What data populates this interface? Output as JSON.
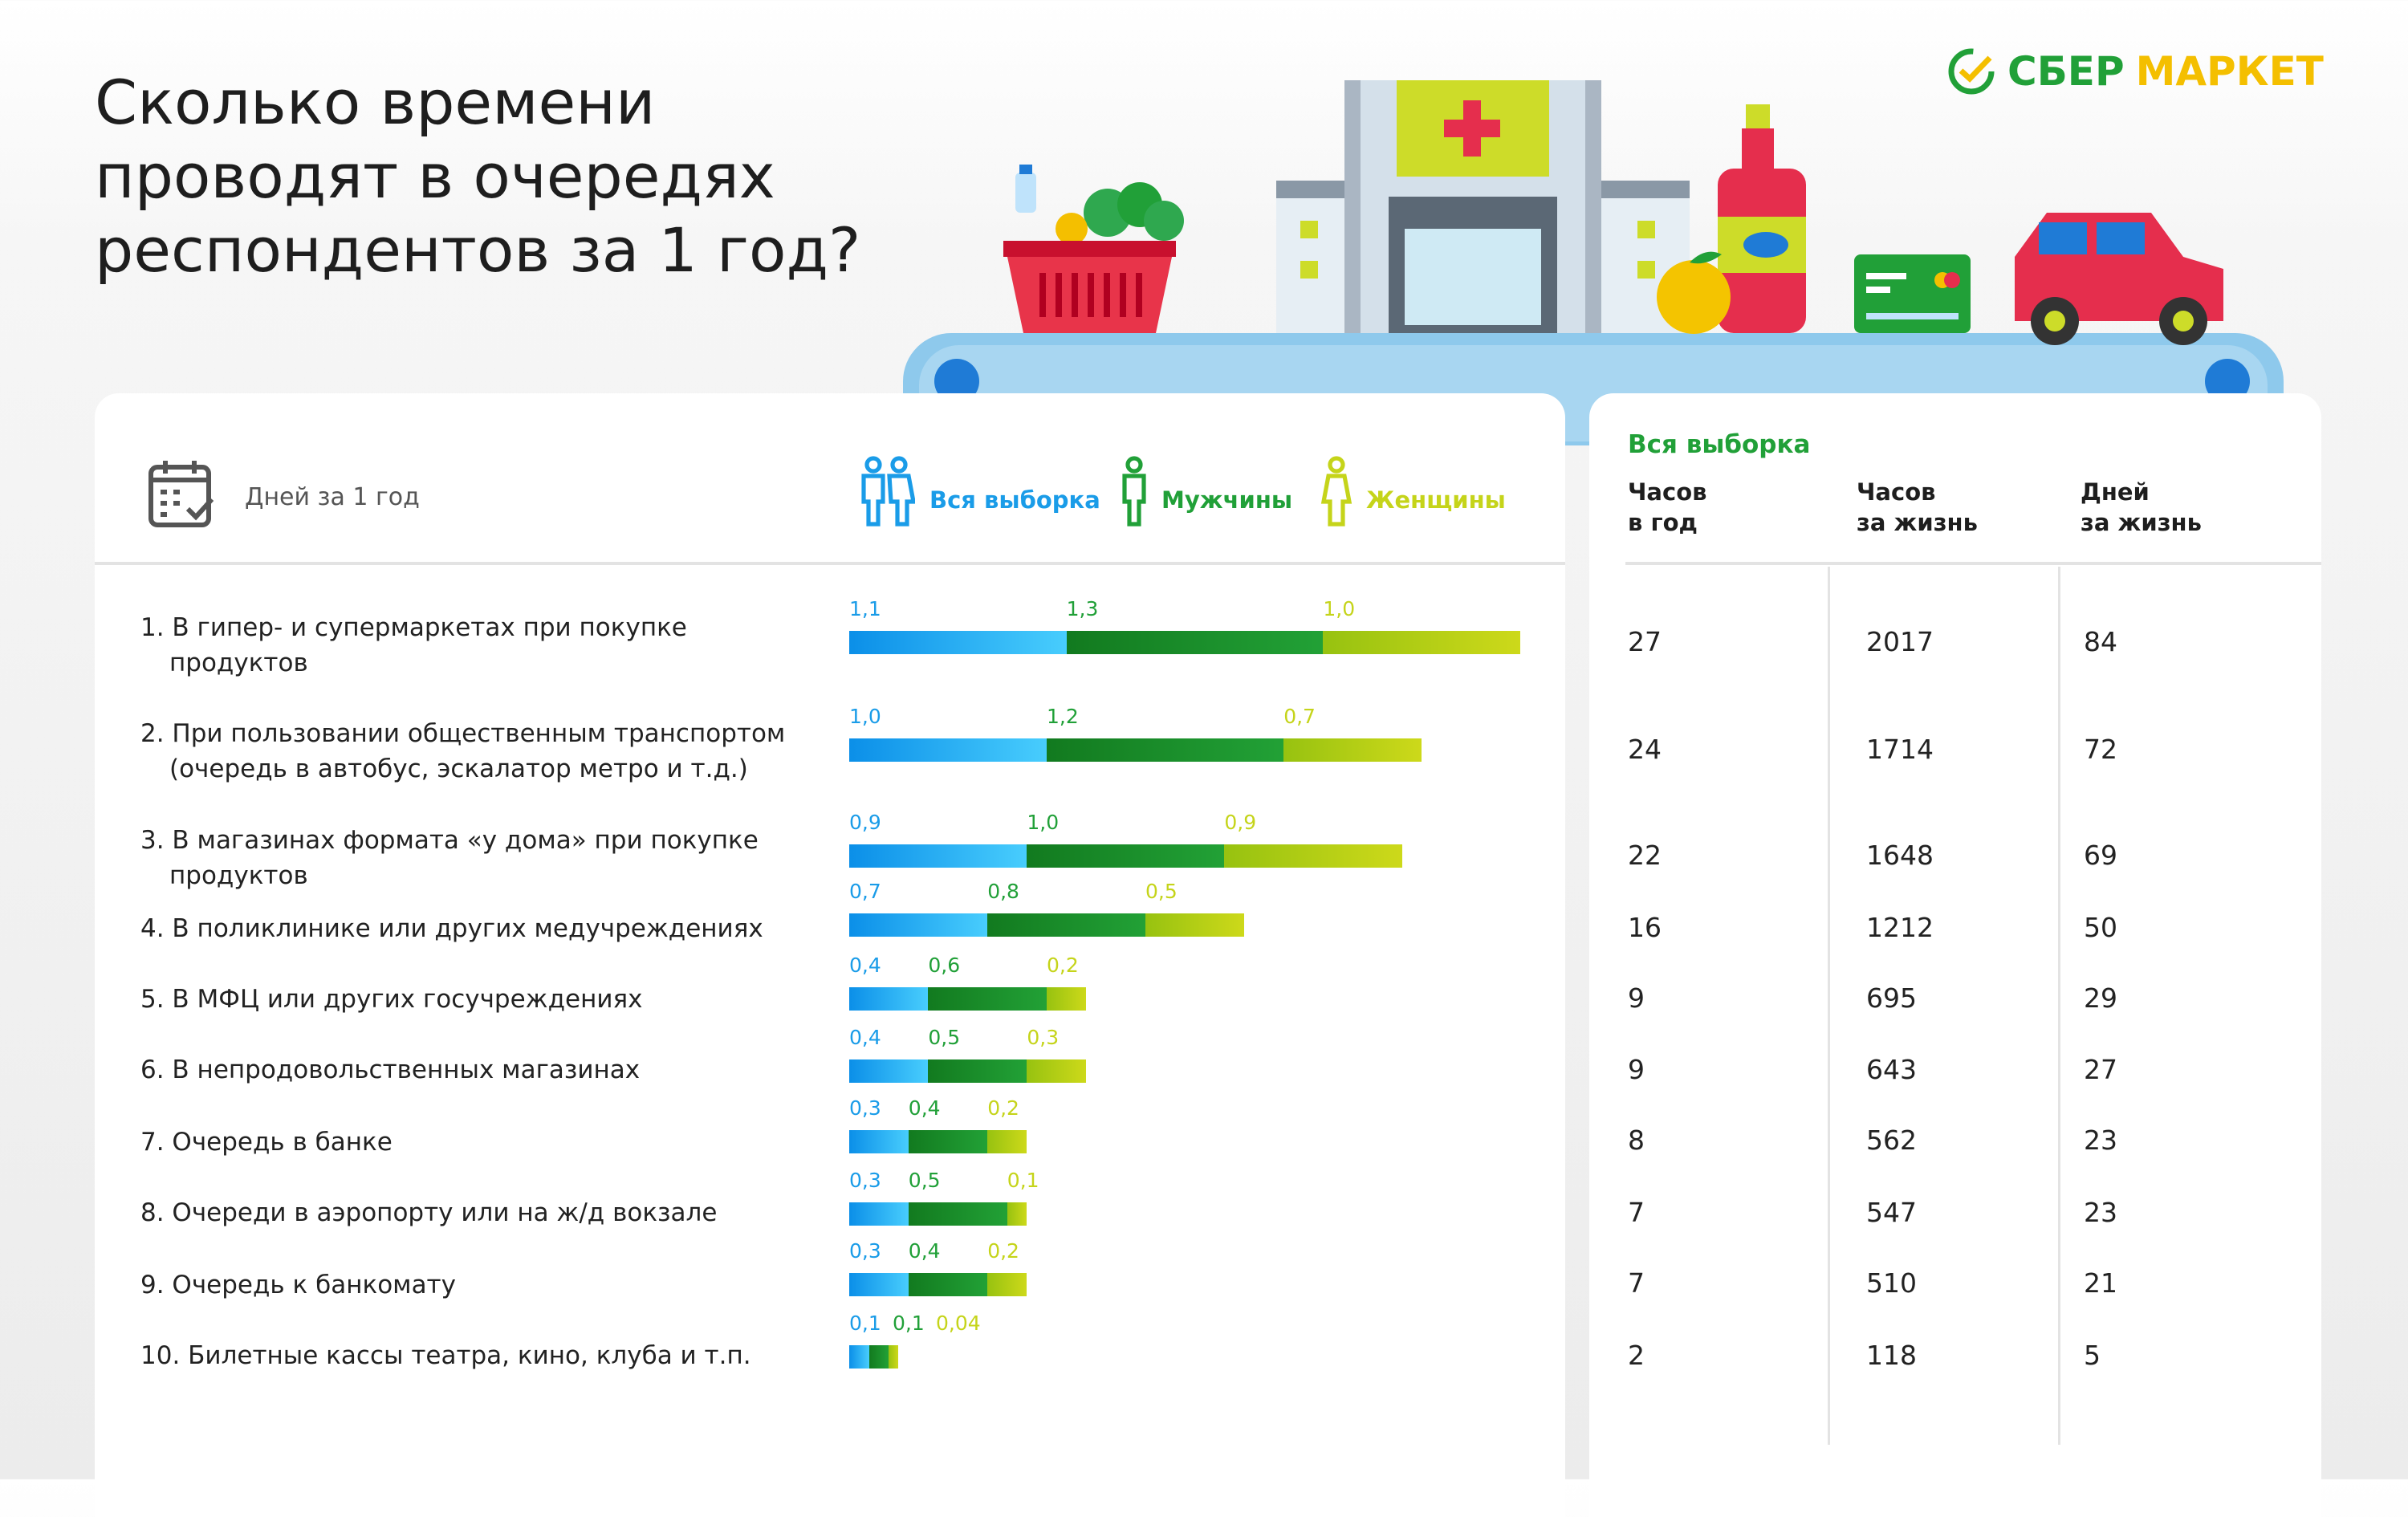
{
  "title": "Сколько времени\nпроводят в очередях\nреспондентов за 1 год?",
  "logo": {
    "part1": "СБЕР",
    "part2": "МАРКЕТ"
  },
  "left_header": {
    "label": "Дней за 1 год",
    "icon": "calendar-icon"
  },
  "legend": [
    {
      "label": "Вся выборка",
      "color": "#1a9ce8",
      "icon": "people-icon"
    },
    {
      "label": "Мужчины",
      "color": "#21a038",
      "icon": "man-icon"
    },
    {
      "label": "Женщины",
      "color": "#c5d41a",
      "icon": "woman-icon"
    }
  ],
  "chart_data": {
    "type": "bar",
    "stacked": true,
    "title": "Дней за 1 год",
    "categories": [
      {
        "line1": "1. В гипер- и супермаркетах при покупке",
        "line2": "продуктов"
      },
      {
        "line1": "2. При пользовании общественным транспортом",
        "line2": "(очередь в автобус, эскалатор метро и т.д.)"
      },
      {
        "line1": "3. В магазинах формата «у дома» при покупке",
        "line2": "продуктов"
      },
      {
        "line1": "4. В поликлинике или других медучреждениях",
        "line2": ""
      },
      {
        "line1": "5. В МФЦ или других госучреждениях",
        "line2": ""
      },
      {
        "line1": "6. В непродовольственных магазинах",
        "line2": ""
      },
      {
        "line1": "7. Очередь в банке",
        "line2": ""
      },
      {
        "line1": "8. Очереди в аэропорту или на ж/д вокзале",
        "line2": ""
      },
      {
        "line1": "9. Очередь к банкомату",
        "line2": ""
      },
      {
        "line1": "10. Билетные кассы театра, кино, клуба и т.п.",
        "line2": ""
      }
    ],
    "series": [
      {
        "name": "Вся выборка",
        "values": [
          1.1,
          1.0,
          0.9,
          0.7,
          0.4,
          0.4,
          0.3,
          0.3,
          0.3,
          0.1
        ],
        "labels": [
          "1,1",
          "1,0",
          "0,9",
          "0,7",
          "0,4",
          "0,4",
          "0,3",
          "0,3",
          "0,3",
          "0,1"
        ]
      },
      {
        "name": "Мужчины",
        "values": [
          1.3,
          1.2,
          1.0,
          0.8,
          0.6,
          0.5,
          0.4,
          0.5,
          0.4,
          0.1
        ],
        "labels": [
          "1,3",
          "1,2",
          "1,0",
          "0,8",
          "0,6",
          "0,5",
          "0,4",
          "0,5",
          "0,4",
          "0,1"
        ]
      },
      {
        "name": "Женщины",
        "values": [
          1.0,
          0.7,
          0.9,
          0.5,
          0.2,
          0.3,
          0.2,
          0.1,
          0.2,
          0.04
        ],
        "labels": [
          "1,0",
          "0,7",
          "0,9",
          "0,5",
          "0,2",
          "0,3",
          "0,2",
          "0,1",
          "0,2",
          "0,04"
        ]
      }
    ]
  },
  "table": {
    "title": "Вся выборка",
    "headers": [
      "Часов\nв год",
      "Часов\nза жизнь",
      "Дней\nза жизнь"
    ],
    "rows": [
      [
        "27",
        "2017",
        "84"
      ],
      [
        "24",
        "1714",
        "72"
      ],
      [
        "22",
        "1648",
        "69"
      ],
      [
        "16",
        "1212",
        "50"
      ],
      [
        "9",
        "695",
        "29"
      ],
      [
        "9",
        "643",
        "27"
      ],
      [
        "8",
        "562",
        "23"
      ],
      [
        "7",
        "547",
        "23"
      ],
      [
        "7",
        "510",
        "21"
      ],
      [
        "2",
        "118",
        "5"
      ]
    ]
  }
}
